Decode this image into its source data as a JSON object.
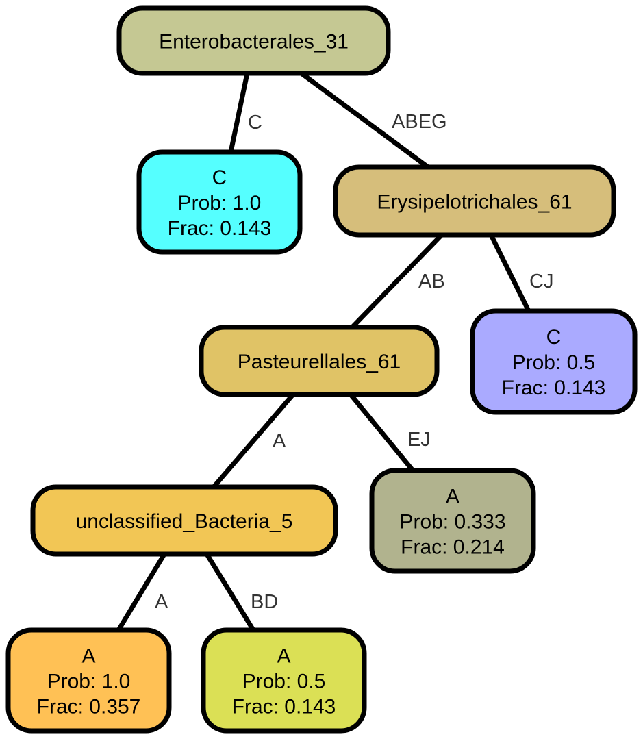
{
  "nodes": [
    {
      "id": "n0",
      "lines": [
        "Enterobacterales_31"
      ],
      "color": "#c5c893"
    },
    {
      "id": "n1",
      "lines": [
        "C",
        "Prob: 1.0",
        "Frac: 0.143"
      ],
      "color": "#55ffff"
    },
    {
      "id": "n2",
      "lines": [
        "Erysipelotrichales_61"
      ],
      "color": "#d6be7b"
    },
    {
      "id": "n3",
      "lines": [
        "Pasteurellales_61"
      ],
      "color": "#e0c366"
    },
    {
      "id": "n4",
      "lines": [
        "C",
        "Prob: 0.5",
        "Frac: 0.143"
      ],
      "color": "#aaaaff"
    },
    {
      "id": "n5",
      "lines": [
        "unclassified_Bacteria_5"
      ],
      "color": "#f2c655"
    },
    {
      "id": "n6",
      "lines": [
        "A",
        "Prob: 0.333",
        "Frac: 0.214"
      ],
      "color": "#b1b38e"
    },
    {
      "id": "n7",
      "lines": [
        "A",
        "Prob: 1.0",
        "Frac: 0.357"
      ],
      "color": "#ffc155"
    },
    {
      "id": "n8",
      "lines": [
        "A",
        "Prob: 0.5",
        "Frac: 0.143"
      ],
      "color": "#dbe055"
    }
  ],
  "edges": [
    {
      "from": "n0",
      "to": "n1",
      "label": "C"
    },
    {
      "from": "n0",
      "to": "n2",
      "label": "ABEG"
    },
    {
      "from": "n2",
      "to": "n3",
      "label": "AB"
    },
    {
      "from": "n2",
      "to": "n4",
      "label": "CJ"
    },
    {
      "from": "n3",
      "to": "n5",
      "label": "A"
    },
    {
      "from": "n3",
      "to": "n6",
      "label": "EJ"
    },
    {
      "from": "n5",
      "to": "n7",
      "label": "A"
    },
    {
      "from": "n5",
      "to": "n8",
      "label": "BD"
    }
  ]
}
